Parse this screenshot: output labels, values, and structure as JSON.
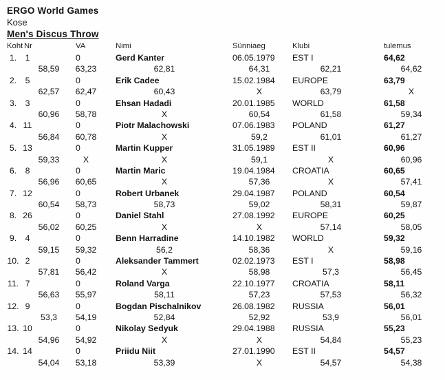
{
  "header": {
    "event_title": "ERGO World Games",
    "location": "Kose",
    "section_title": "Men's Discus Throw"
  },
  "table": {
    "columns": {
      "koht": "Koht",
      "nr": "Nr",
      "va": "VA",
      "nimi": "Nimi",
      "sunniaeg": "Sünniaeg",
      "klubi": "Klubi",
      "tulemus": "tulemus"
    },
    "rows": [
      {
        "koht": "1.",
        "nr": "1",
        "va": "0",
        "nimi": "Gerd Kanter",
        "sunniaeg": "06.05.1979",
        "klubi": "EST I",
        "tulemus": "64,62",
        "attempts": [
          "58,59",
          "63,23",
          "62,81",
          "64,31",
          "62,21",
          "64,62"
        ]
      },
      {
        "koht": "2.",
        "nr": "5",
        "va": "0",
        "nimi": "Erik Cadee",
        "sunniaeg": "15.02.1984",
        "klubi": "EUROPE",
        "tulemus": "63,79",
        "attempts": [
          "62,57",
          "62,47",
          "60,43",
          "X",
          "63,79",
          "X"
        ]
      },
      {
        "koht": "3.",
        "nr": "3",
        "va": "0",
        "nimi": "Ehsan Hadadi",
        "sunniaeg": "20.01.1985",
        "klubi": "WORLD",
        "tulemus": "61,58",
        "attempts": [
          "60,96",
          "58,78",
          "X",
          "60,54",
          "61,58",
          "59,34"
        ]
      },
      {
        "koht": "4.",
        "nr": "11",
        "va": "0",
        "nimi": "Piotr Malachowski",
        "sunniaeg": "07.06.1983",
        "klubi": "POLAND",
        "tulemus": "61,27",
        "attempts": [
          "56,84",
          "60,78",
          "X",
          "59,2",
          "61,01",
          "61,27"
        ]
      },
      {
        "koht": "5.",
        "nr": "13",
        "va": "0",
        "nimi": "Martin Kupper",
        "sunniaeg": "31.05.1989",
        "klubi": "EST II",
        "tulemus": "60,96",
        "attempts": [
          "59,33",
          "X",
          "X",
          "59,1",
          "X",
          "60,96"
        ]
      },
      {
        "koht": "6.",
        "nr": "8",
        "va": "0",
        "nimi": "Martin Maric",
        "sunniaeg": "19.04.1984",
        "klubi": "CROATIA",
        "tulemus": "60,65",
        "attempts": [
          "56,96",
          "60,65",
          "X",
          "57,36",
          "X",
          "57,41"
        ]
      },
      {
        "koht": "7.",
        "nr": "12",
        "va": "0",
        "nimi": "Robert Urbanek",
        "sunniaeg": "29.04.1987",
        "klubi": "POLAND",
        "tulemus": "60,54",
        "attempts": [
          "60,54",
          "58,73",
          "58,73",
          "59,02",
          "58,31",
          "59,87"
        ]
      },
      {
        "koht": "8.",
        "nr": "26",
        "va": "0",
        "nimi": "Daniel Stahl",
        "sunniaeg": "27.08.1992",
        "klubi": "EUROPE",
        "tulemus": "60,25",
        "attempts": [
          "56,02",
          "60,25",
          "X",
          "X",
          "57,14",
          "58,05"
        ]
      },
      {
        "koht": "9.",
        "nr": "4",
        "va": "0",
        "nimi": "Benn Harradine",
        "sunniaeg": "14.10.1982",
        "klubi": "WORLD",
        "tulemus": "59,32",
        "attempts": [
          "59,15",
          "59,32",
          "56,2",
          "58,36",
          "X",
          "59,16"
        ]
      },
      {
        "koht": "10.",
        "nr": "2",
        "va": "0",
        "nimi": "Aleksander Tammert",
        "sunniaeg": "02.02.1973",
        "klubi": "EST I",
        "tulemus": "58,98",
        "attempts": [
          "57,81",
          "56,42",
          "X",
          "58,98",
          "57,3",
          "56,45"
        ]
      },
      {
        "koht": "11.",
        "nr": "7",
        "va": "0",
        "nimi": "Roland Varga",
        "sunniaeg": "22.10.1977",
        "klubi": "CROATIA",
        "tulemus": "58,11",
        "attempts": [
          "56,63",
          "55,97",
          "58,11",
          "57,23",
          "57,53",
          "56,32"
        ]
      },
      {
        "koht": "12.",
        "nr": "9",
        "va": "0",
        "nimi": "Bogdan Pischalnikov",
        "sunniaeg": "26.08.1982",
        "klubi": "RUSSIA",
        "tulemus": "56,01",
        "attempts": [
          "53,3",
          "54,19",
          "52,84",
          "52,92",
          "53,9",
          "56,01"
        ]
      },
      {
        "koht": "13.",
        "nr": "10",
        "va": "0",
        "nimi": "Nikolay Sedyuk",
        "sunniaeg": "29.04.1988",
        "klubi": "RUSSIA",
        "tulemus": "55,23",
        "attempts": [
          "54,96",
          "54,92",
          "X",
          "X",
          "54,84",
          "55,23"
        ]
      },
      {
        "koht": "14.",
        "nr": "14",
        "va": "0",
        "nimi": "Priidu Niit",
        "sunniaeg": "27.01.1990",
        "klubi": "EST II",
        "tulemus": "54,57",
        "attempts": [
          "54,04",
          "53,18",
          "53,39",
          "X",
          "54,57",
          "54,38"
        ]
      }
    ]
  }
}
